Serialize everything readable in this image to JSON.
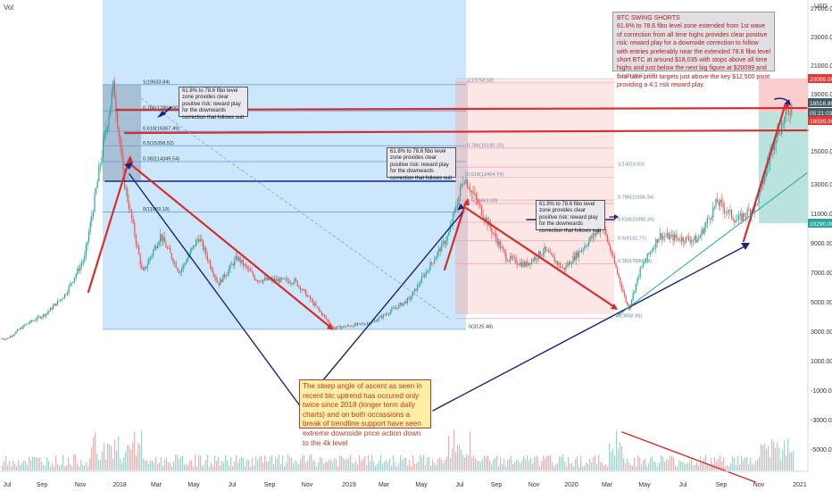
{
  "header": {
    "vol_label": "Vol",
    "currency_label": "USD"
  },
  "notes": {
    "btc_swing_title": "BTC SWING SHORTS",
    "btc_swing_body": "61.8% to 78.6 fibo level zone extended from 1st wave of correction from all time highs provides clear positive risk: reward play for a downside correction to follow with entries preferably near the extended 78.6 fibo level short BTC at around $18,035 with stops above all time highs and just below the next big figure at $20099 and final take profit targets just above the key $12,500 pivot providing a 4:1 risk reward play.",
    "fib_note": "61.8% to 78.6 fibo level zone provides clear positive risk: reward play for the downwards correction that follows suit",
    "steep_note": "The steep angle of ascent as seen in recent btc uptrend has occured only twice since 2018 (longer term daily charts) and on both occassions a break of trendline support have seen extreme downside price action down to the 4k level"
  },
  "price_tags": [
    {
      "text": "20099.00",
      "color": "#e53935"
    },
    {
      "text": "18516.89",
      "color": "#455a64"
    },
    {
      "text": "05:21:03",
      "color": "#455a64"
    },
    {
      "text": "18039.00",
      "color": "#e53935"
    },
    {
      "text": "10290.00",
      "color": "#26a69a"
    }
  ],
  "chart_data": {
    "type": "line",
    "title": "",
    "currency": "USD",
    "x_ticks": [
      "Jul",
      "Sep",
      "Nov",
      "2018",
      "Mar",
      "May",
      "Jul",
      "Sep",
      "Nov",
      "2019",
      "Mar",
      "May",
      "Jul",
      "Sep",
      "Nov",
      "2020",
      "Mar",
      "May",
      "Jul",
      "Sep",
      "Nov",
      "2021"
    ],
    "y_ticks_price": [
      27000,
      23000,
      21000,
      19000,
      17000,
      15000,
      13000,
      11000,
      9000,
      7000,
      5000,
      3000
    ],
    "y_ticks_lower": [
      1000,
      -1000,
      -3000,
      -5000
    ],
    "lower_pane_label": "Vol",
    "series": [
      {
        "values": [
          [
            "2017-07",
            2500
          ],
          [
            "2017-08",
            3500
          ],
          [
            "2017-09",
            4200
          ],
          [
            "2017-10",
            5500
          ],
          [
            "2017-11",
            8000
          ],
          [
            "2017-12-17",
            19600
          ],
          [
            "2018-01",
            13500
          ],
          [
            "2018-02",
            6900
          ],
          [
            "2018-03",
            9500
          ],
          [
            "2018-04",
            7000
          ],
          [
            "2018-05",
            9400
          ],
          [
            "2018-06",
            6200
          ],
          [
            "2018-07",
            8000
          ],
          [
            "2018-08",
            6500
          ],
          [
            "2018-10",
            6400
          ],
          [
            "2018-12",
            3200
          ],
          [
            "2019-02",
            3600
          ],
          [
            "2019-04",
            5200
          ],
          [
            "2019-06",
            9500
          ],
          [
            "2019-06-26",
            13500
          ],
          [
            "2019-08",
            10500
          ],
          [
            "2019-09",
            8000
          ],
          [
            "2019-10",
            7500
          ],
          [
            "2019-11",
            8500
          ],
          [
            "2019-12",
            7200
          ],
          [
            "2020-02",
            10200
          ],
          [
            "2020-03-13",
            4500
          ],
          [
            "2020-04",
            7200
          ],
          [
            "2020-05",
            9500
          ],
          [
            "2020-06",
            9300
          ],
          [
            "2020-07",
            9200
          ],
          [
            "2020-08",
            11800
          ],
          [
            "2020-09",
            10500
          ],
          [
            "2020-10",
            11500
          ],
          [
            "2020-11",
            16000
          ],
          [
            "2020-12",
            18500
          ]
        ]
      }
    ],
    "fib_levels_2018": [
      {
        "label": "1(19633.84)",
        "value": 19633.84
      },
      {
        "label": "0.786(17804.00)",
        "value": 17804.0
      },
      {
        "label": "0.618(16367.49)",
        "value": 16367.49
      },
      {
        "label": "0.5(15358.52)",
        "value": 15358.52
      },
      {
        "label": "0.382(14349.54)",
        "value": 14349.54
      },
      {
        "label": "0(11083.19)",
        "value": 11083.19
      },
      {
        "label": "0(3125.48)",
        "value": 3125.48
      }
    ],
    "fib_levels_2019": [
      {
        "label": "1.618(20051.07)",
        "value": 20051.07
      },
      {
        "label": "1(19758.58)",
        "value": 19758.58
      },
      {
        "label": "0.786(15190.15)",
        "value": 15190.15
      },
      {
        "label": "0.618(13404.74)",
        "value": 13404.74
      },
      {
        "label": "1(14016.63)",
        "value": 14016.63
      },
      {
        "label": "0.786(11906.34)",
        "value": 11906.34
      },
      {
        "label": "0.5(11661.03)",
        "value": 11661.03
      },
      {
        "label": "0.618(10395.26)",
        "value": 10395.26
      },
      {
        "label": "0.5(9132.77)",
        "value": 9132.77
      },
      {
        "label": "0.382(7580.19)",
        "value": 7580.19
      },
      {
        "label": "0(3858.99)",
        "value": 3858.99
      }
    ]
  }
}
